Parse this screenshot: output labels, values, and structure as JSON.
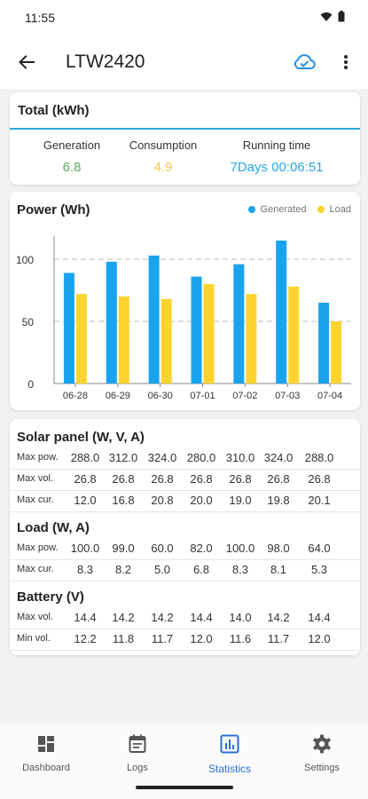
{
  "status_bar": {
    "time": "11:55",
    "icons": [
      "wifi-icon",
      "battery-icon"
    ]
  },
  "app_bar": {
    "title": "LTW2420",
    "back_icon": "arrow-left-icon",
    "cloud_icon": "cloud-check-icon",
    "menu_icon": "more-vert-icon",
    "accent": "#2a8fe0"
  },
  "total": {
    "title": "Total (kWh)",
    "metrics": [
      {
        "label": "Generation",
        "value": "6.8",
        "color": "#5aab5a"
      },
      {
        "label": "Consumption",
        "value": "4.9",
        "color": "#f5c842"
      },
      {
        "label": "Running time",
        "value": "7Days 00:06:51",
        "color": "#29a8e0"
      }
    ]
  },
  "power": {
    "title": "Power (Wh)",
    "legend": [
      {
        "label": "Generated",
        "color": "#1aa3ee"
      },
      {
        "label": "Load",
        "color": "#fdd42f"
      }
    ]
  },
  "chart_data": {
    "type": "bar",
    "categories": [
      "06-28",
      "06-29",
      "06-30",
      "07-01",
      "07-02",
      "07-03",
      "07-04"
    ],
    "series": [
      {
        "name": "Generated",
        "values": [
          89,
          98,
          103,
          86,
          96,
          115,
          65
        ]
      },
      {
        "name": "Load",
        "values": [
          72,
          70,
          68,
          80,
          72,
          78,
          50
        ]
      }
    ],
    "title": "Power (Wh)",
    "yticks": [
      0,
      50,
      100
    ],
    "ylim": [
      0,
      120
    ],
    "grid": true,
    "legend_position": "top-right"
  },
  "solar": {
    "title": "Solar panel (W, V, A)",
    "rows": [
      {
        "label": "Max pow.",
        "values": [
          "288.0",
          "312.0",
          "324.0",
          "280.0",
          "310.0",
          "324.0",
          "288.0"
        ]
      },
      {
        "label": "Max vol.",
        "values": [
          "26.8",
          "26.8",
          "26.8",
          "26.8",
          "26.8",
          "26.8",
          "26.8"
        ]
      },
      {
        "label": "Max cur.",
        "values": [
          "12.0",
          "16.8",
          "20.8",
          "20.0",
          "19.0",
          "19.8",
          "20.1"
        ]
      }
    ]
  },
  "load": {
    "title": "Load (W, A)",
    "rows": [
      {
        "label": "Max pow.",
        "values": [
          "100.0",
          "99.0",
          "60.0",
          "82.0",
          "100.0",
          "98.0",
          "64.0"
        ]
      },
      {
        "label": "Max cur.",
        "values": [
          "8.3",
          "8.2",
          "5.0",
          "6.8",
          "8.3",
          "8.1",
          "5.3"
        ]
      }
    ]
  },
  "battery": {
    "title": "Battery (V)",
    "rows": [
      {
        "label": "Max vol.",
        "values": [
          "14.4",
          "14.2",
          "14.2",
          "14.4",
          "14.0",
          "14.2",
          "14.4"
        ]
      },
      {
        "label": "Min vol.",
        "values": [
          "12.2",
          "11.8",
          "11.7",
          "12.0",
          "11.6",
          "11.7",
          "12.0"
        ]
      }
    ]
  },
  "nav": {
    "items": [
      {
        "label": "Dashboard",
        "icon": "dashboard-icon",
        "active": false
      },
      {
        "label": "Logs",
        "icon": "calendar-icon",
        "active": false
      },
      {
        "label": "Statistics",
        "icon": "bar-chart-icon",
        "active": true
      },
      {
        "label": "Settings",
        "icon": "gear-icon",
        "active": false
      }
    ],
    "active_color": "#2a6fd6"
  }
}
